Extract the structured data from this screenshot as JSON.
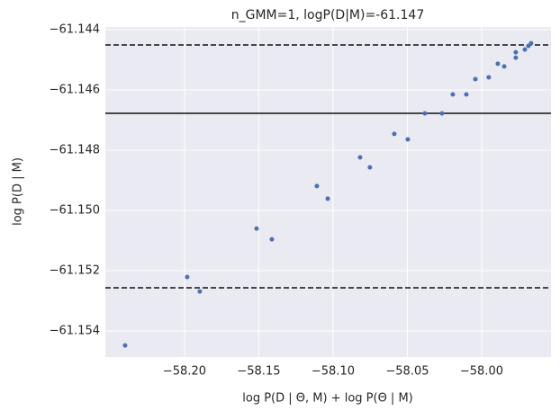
{
  "chart_data": {
    "type": "scatter",
    "title": "n_GMM=1, logP(D|M)=-61.147",
    "x_label": "log P(D | Θ, M) + log P(Θ | M)",
    "y_label": "log P(D | M)",
    "color": "#4c72b0",
    "background": "#eaeaf2",
    "grid": true,
    "xlim": [
      -58.2533,
      -57.9533
    ],
    "ylim": [
      -61.154866,
      -61.14391
    ],
    "xticks": [
      {
        "value": -58.2,
        "label": "−58.20"
      },
      {
        "value": -58.15,
        "label": "−58.15"
      },
      {
        "value": -58.1,
        "label": "−58.10"
      },
      {
        "value": -58.05,
        "label": "−58.05"
      },
      {
        "value": -58.0,
        "label": "−58.00"
      }
    ],
    "yticks": [
      {
        "value": -61.154,
        "label": "−61.154"
      },
      {
        "value": -61.152,
        "label": "−61.152"
      },
      {
        "value": -61.15,
        "label": "−61.150"
      },
      {
        "value": -61.148,
        "label": "−61.148"
      },
      {
        "value": -61.146,
        "label": "−61.146"
      },
      {
        "value": -61.144,
        "label": "−61.144"
      }
    ],
    "reference_lines": [
      {
        "value": -61.144507,
        "style": "dashed"
      },
      {
        "value": -61.146776,
        "style": "solid"
      },
      {
        "value": -61.152567,
        "style": "dashed"
      }
    ],
    "x": [
      -58.24,
      -58.1982,
      -58.1897,
      -58.1515,
      -58.1412,
      -58.1109,
      -58.1036,
      -58.0818,
      -58.0752,
      -58.0588,
      -58.0497,
      -58.0382,
      -58.0267,
      -58.0194,
      -58.0103,
      -58.0042,
      -57.9952,
      -57.9891,
      -57.9848,
      -57.977,
      -57.977,
      -57.9709,
      -57.9685,
      -57.9667
    ],
    "values": [
      -61.15448,
      -61.15221,
      -61.15269,
      -61.1506,
      -61.15096,
      -61.14919,
      -61.14961,
      -61.14824,
      -61.14857,
      -61.14746,
      -61.14764,
      -61.14678,
      -61.14678,
      -61.14615,
      -61.14615,
      -61.14564,
      -61.14558,
      -61.14513,
      -61.14522,
      -61.14475,
      -61.14493,
      -61.14466,
      -61.14454,
      -61.14445
    ]
  }
}
